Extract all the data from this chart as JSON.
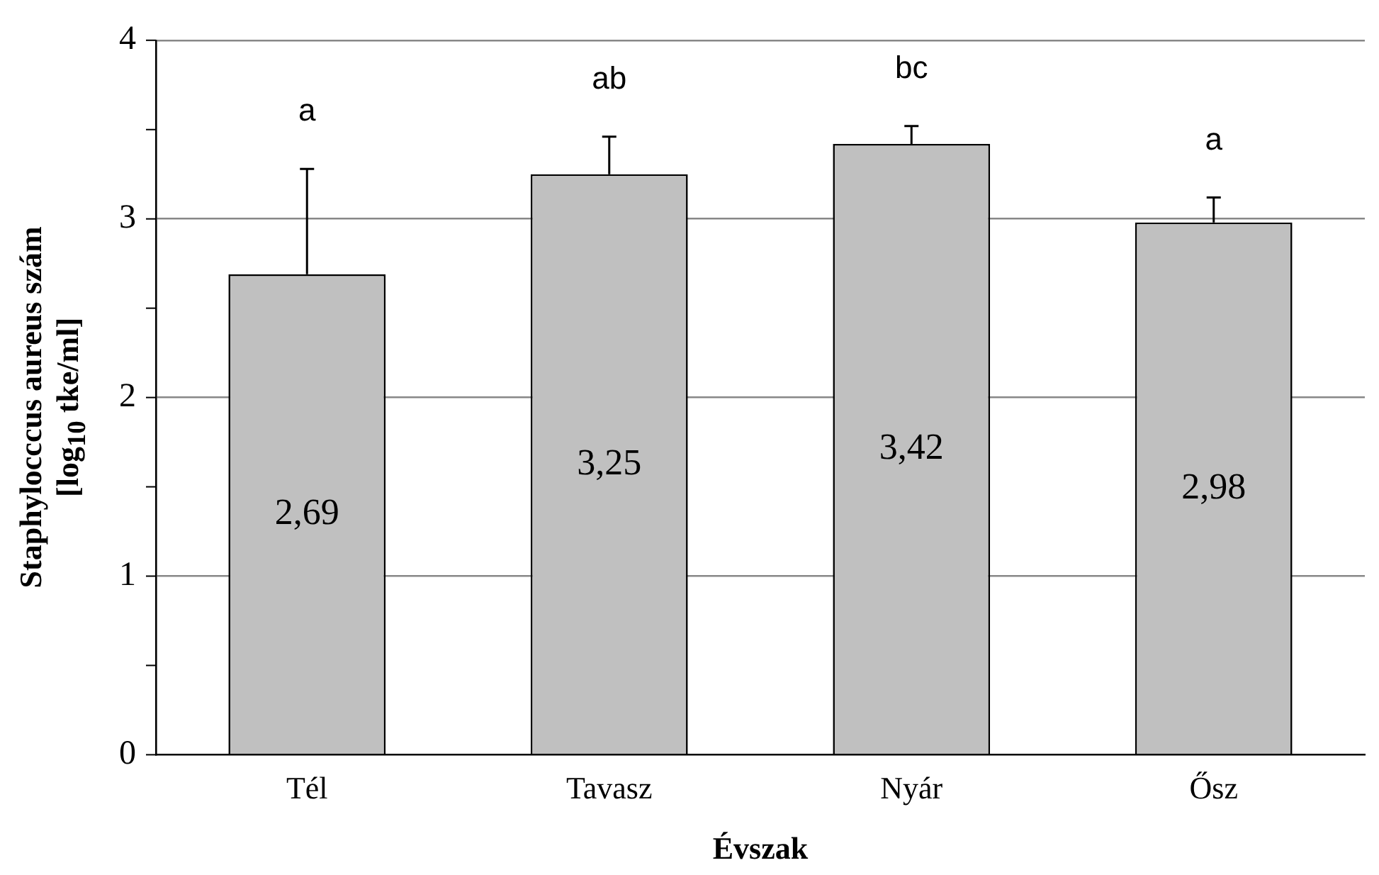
{
  "chart_data": {
    "type": "bar",
    "xlabel": "Évszak",
    "ylabel": "Staphylocccus aureus szám [log$_{10}$ tke/ml]",
    "categories": [
      "Tél",
      "Tavasz",
      "Nyár",
      "Ősz"
    ],
    "values": [
      2.69,
      3.25,
      3.42,
      2.98
    ],
    "color": "#c0c0c0",
    "errors": [
      [
        2.69,
        3.28
      ],
      [
        3.25,
        3.46
      ],
      [
        3.42,
        3.52
      ],
      [
        2.98,
        3.12
      ]
    ],
    "value_labels": [
      "2,69",
      "3,25",
      "3,42",
      "2,98"
    ],
    "annotations": [
      "a",
      "ab",
      "bc",
      "a"
    ],
    "ylim": [
      0,
      4
    ],
    "yticks": [
      0,
      {
        "value": 0.5,
        "label": null
      },
      1,
      {
        "value": 1.5,
        "label": null
      },
      2,
      {
        "value": 2.5,
        "label": null
      },
      3,
      {
        "value": 3.5,
        "label": null
      },
      4
    ],
    "grid": "y",
    "legend": false
  }
}
